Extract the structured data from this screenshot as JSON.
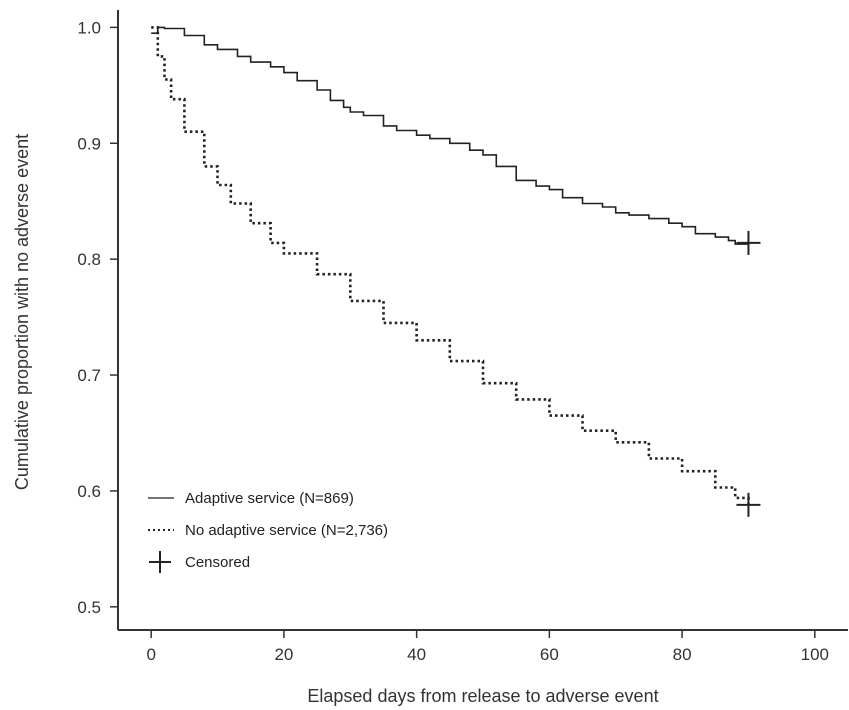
{
  "chart_data": {
    "type": "line",
    "xlabel": "Elapsed days from release to adverse event",
    "ylabel": "Cumulative proportion with no adverse event",
    "xlim": [
      -5,
      105
    ],
    "ylim": [
      0.48,
      1.015
    ],
    "x_ticks": [
      0,
      20,
      40,
      60,
      80,
      100
    ],
    "y_ticks": [
      0.5,
      0.6,
      0.7,
      0.8,
      0.9,
      1.0
    ],
    "x_tick_labels": [
      "0",
      "20",
      "40",
      "60",
      "80",
      "100"
    ],
    "y_tick_labels": [
      "0.5",
      "0.6",
      "0.7",
      "0.8",
      "0.9",
      "1.0"
    ],
    "legend_position": "bottom-left",
    "series": [
      {
        "name": "Adaptive service (N=869)",
        "style": "solid",
        "color": "#222222",
        "x": [
          0,
          1,
          2,
          5,
          8,
          10,
          13,
          15,
          18,
          20,
          22,
          25,
          27,
          29,
          30,
          32,
          35,
          37,
          40,
          42,
          45,
          48,
          50,
          52,
          55,
          58,
          60,
          62,
          65,
          68,
          70,
          72,
          75,
          78,
          80,
          82,
          85,
          87,
          88,
          90
        ],
        "y": [
          0.995,
          1.0,
          0.999,
          0.993,
          0.985,
          0.981,
          0.975,
          0.97,
          0.966,
          0.961,
          0.954,
          0.946,
          0.937,
          0.931,
          0.927,
          0.924,
          0.915,
          0.911,
          0.907,
          0.904,
          0.9,
          0.894,
          0.89,
          0.88,
          0.868,
          0.863,
          0.86,
          0.853,
          0.848,
          0.845,
          0.84,
          0.838,
          0.835,
          0.831,
          0.828,
          0.822,
          0.819,
          0.816,
          0.813,
          0.814
        ]
      },
      {
        "name": "No adaptive service (N=2,736)",
        "style": "dotted",
        "color": "#222222",
        "x": [
          0,
          1,
          2,
          3,
          5,
          8,
          10,
          12,
          15,
          18,
          20,
          25,
          30,
          35,
          40,
          45,
          50,
          55,
          60,
          65,
          70,
          75,
          80,
          85,
          88,
          90
        ],
        "y": [
          1.0,
          0.975,
          0.955,
          0.938,
          0.91,
          0.88,
          0.864,
          0.848,
          0.831,
          0.814,
          0.805,
          0.787,
          0.764,
          0.745,
          0.73,
          0.712,
          0.693,
          0.679,
          0.665,
          0.652,
          0.642,
          0.628,
          0.617,
          0.603,
          0.594,
          0.589
        ]
      }
    ],
    "censored": [
      {
        "x": 90,
        "y": 0.814
      },
      {
        "x": 90,
        "y": 0.588
      }
    ],
    "legend": [
      {
        "label": "Adaptive service (N=869)",
        "marker": "solid-line"
      },
      {
        "label": "No adaptive service (N=2,736)",
        "marker": "dotted-line"
      },
      {
        "label": "Censored",
        "marker": "plus"
      }
    ]
  }
}
